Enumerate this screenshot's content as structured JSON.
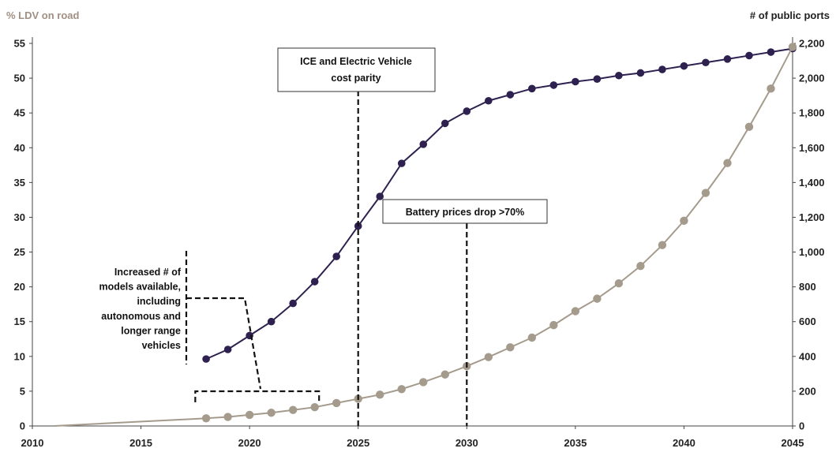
{
  "chart_data": {
    "type": "line",
    "title": "",
    "left_axis": {
      "label": "% LDV on road",
      "ylim": [
        0,
        55
      ],
      "ticks": [
        0,
        5,
        10,
        15,
        20,
        25,
        30,
        35,
        40,
        45,
        50,
        55
      ],
      "color": "#a08f82"
    },
    "right_axis": {
      "label": "# of public ports",
      "ylim": [
        0,
        2200
      ],
      "ticks": [
        0,
        200,
        400,
        600,
        800,
        1000,
        1200,
        1400,
        1600,
        1800,
        2000,
        2200
      ],
      "tick_labels": [
        "0",
        "200",
        "400",
        "600",
        "800",
        "1,000",
        "1,200",
        "1,400",
        "1,600",
        "1,800",
        "2,000",
        "2,200"
      ],
      "color": "#222222"
    },
    "xlim": [
      2010,
      2045
    ],
    "x_ticks": [
      2010,
      2015,
      2020,
      2025,
      2030,
      2035,
      2040,
      2045
    ],
    "grid": false,
    "series": [
      {
        "axis": "right",
        "color": "#2e2150",
        "x": [
          2018,
          2019,
          2020,
          2021,
          2022,
          2023,
          2024,
          2025,
          2026,
          2027,
          2028,
          2029,
          2030,
          2031,
          2032,
          2033,
          2034,
          2035,
          2036,
          2037,
          2038,
          2039,
          2040,
          2041,
          2042,
          2043,
          2044,
          2045
        ],
        "y": [
          385,
          440,
          520,
          600,
          705,
          830,
          975,
          1150,
          1320,
          1510,
          1620,
          1740,
          1810,
          1870,
          1905,
          1940,
          1960,
          1980,
          1995,
          2015,
          2030,
          2050,
          2070,
          2090,
          2110,
          2130,
          2150,
          2170
        ]
      },
      {
        "axis": "left",
        "color": "#a59b8d",
        "line_start": 2011,
        "x": [
          2018,
          2019,
          2020,
          2021,
          2022,
          2023,
          2024,
          2025,
          2026,
          2027,
          2028,
          2029,
          2030,
          2031,
          2032,
          2033,
          2034,
          2035,
          2036,
          2037,
          2038,
          2039,
          2040,
          2041,
          2042,
          2043,
          2044,
          2045
        ],
        "y": [
          1.1,
          1.3,
          1.6,
          1.9,
          2.3,
          2.7,
          3.3,
          3.9,
          4.5,
          5.3,
          6.3,
          7.4,
          8.6,
          9.9,
          11.3,
          12.7,
          14.5,
          16.5,
          18.3,
          20.5,
          23.0,
          26.0,
          29.5,
          33.5,
          37.8,
          43.0,
          48.5,
          54.5
        ]
      }
    ],
    "annotations": [
      {
        "lines": [
          "ICE and Electric Vehicle",
          "cost parity"
        ],
        "x": 2025
      },
      {
        "lines": [
          "Battery prices drop >70%"
        ],
        "x": 2030
      },
      {
        "lines": [
          "Increased # of",
          "models available,",
          "including",
          "autonomous and",
          "longer range",
          "vehicles"
        ],
        "bracket": [
          2017.5,
          2023.2
        ]
      }
    ]
  }
}
